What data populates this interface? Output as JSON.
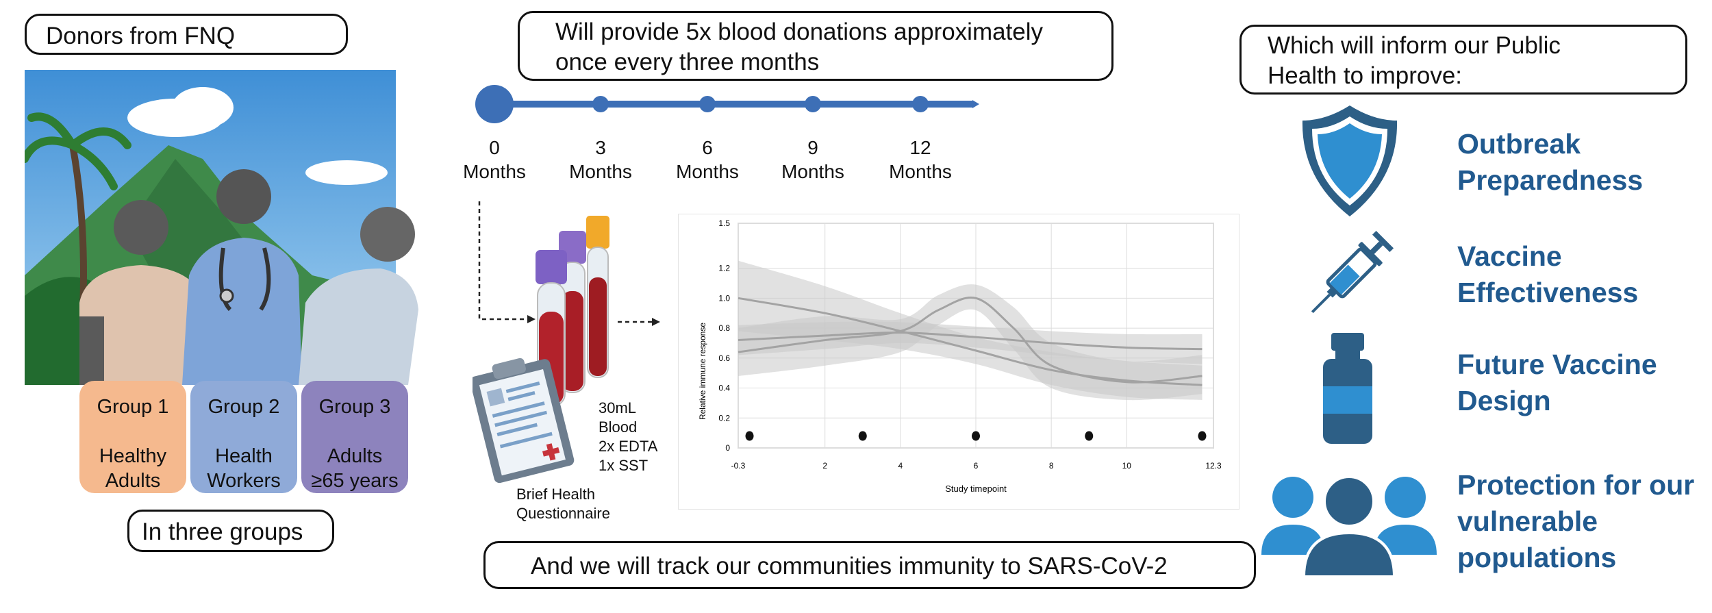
{
  "donors_title": "Donors from FNQ",
  "groups": [
    {
      "name": "Group 1",
      "desc1": "Healthy",
      "desc2": "Adults",
      "color": "#f5b98e"
    },
    {
      "name": "Group 2",
      "desc1": "Health",
      "desc2": "Workers",
      "color": "#8faad8"
    },
    {
      "name": "Group 3",
      "desc1": "Adults",
      "desc2": "≥65 years",
      "color": "#8d83bd"
    }
  ],
  "groups_caption": "In three groups",
  "donation_title_line1": "Will provide 5x blood donations approximately",
  "donation_title_line2": "once every three months",
  "timeline": [
    {
      "num": "0",
      "unit": "Months"
    },
    {
      "num": "3",
      "unit": "Months"
    },
    {
      "num": "6",
      "unit": "Months"
    },
    {
      "num": "9",
      "unit": "Months"
    },
    {
      "num": "12",
      "unit": "Months"
    }
  ],
  "sample": {
    "line1": "30mL",
    "line2": "Blood",
    "line3": "2x EDTA",
    "line4": "1x SST"
  },
  "questionnaire": {
    "line1": "Brief Health",
    "line2": "Questionnaire"
  },
  "tracking_text": "And we will track our communities immunity to SARS-CoV-2",
  "public_health_line1": "Which will inform our Public",
  "public_health_line2": "Health to improve:",
  "goals": [
    {
      "line1": "Outbreak",
      "line2": "Preparedness",
      "icon": "shield-icon"
    },
    {
      "line1": "Vaccine",
      "line2": "Effectiveness",
      "icon": "syringe-icon"
    },
    {
      "line1": "Future Vaccine",
      "line2": "Design",
      "icon": "vial-icon"
    },
    {
      "line1": "Protection for our",
      "line2": "vulnerable",
      "line3": "populations",
      "icon": "people-icon"
    }
  ],
  "colors": {
    "timeline": "#3d6fb6",
    "goal_text": "#215a8f",
    "icon_blue": "#2f8fd0",
    "icon_dark": "#2d5f86"
  },
  "chart_data": {
    "type": "line",
    "xlabel": "Study timepoint",
    "ylabel": "Relative immune response",
    "xlim": [
      -0.3,
      12.3
    ],
    "ylim": [
      0,
      1.5
    ],
    "x_ticks": [
      "-0.3",
      "2",
      "4",
      "6",
      "8",
      "10",
      "12.3"
    ],
    "y_ticks": [
      "0",
      "0.2",
      "0.4",
      "0.6",
      "0.8",
      "1.0",
      "1.2",
      "1.5"
    ],
    "grid": true,
    "series": [
      {
        "x": [
          -0.3,
          2,
          4,
          6,
          8,
          10,
          12
        ],
        "values": [
          1.0,
          0.9,
          0.78,
          0.65,
          0.52,
          0.45,
          0.42
        ],
        "band_low": [
          0.78,
          0.72,
          0.66,
          0.56,
          0.42,
          0.34,
          0.32
        ],
        "band_high": [
          1.25,
          1.08,
          0.9,
          0.74,
          0.64,
          0.58,
          0.55
        ]
      },
      {
        "x": [
          -0.3,
          2,
          4,
          6,
          8,
          10,
          12
        ],
        "values": [
          0.72,
          0.75,
          0.77,
          0.74,
          0.7,
          0.67,
          0.66
        ],
        "band_low": [
          0.62,
          0.66,
          0.7,
          0.67,
          0.62,
          0.58,
          0.56
        ],
        "band_high": [
          0.82,
          0.84,
          0.84,
          0.81,
          0.78,
          0.76,
          0.76
        ]
      },
      {
        "x": [
          -0.3,
          2,
          4,
          5,
          6,
          7,
          8,
          10,
          12
        ],
        "values": [
          0.64,
          0.72,
          0.78,
          0.92,
          1.0,
          0.8,
          0.55,
          0.44,
          0.48
        ],
        "band_low": [
          0.48,
          0.55,
          0.64,
          0.82,
          0.92,
          0.66,
          0.4,
          0.32,
          0.36
        ],
        "band_high": [
          0.8,
          0.88,
          0.86,
          1.02,
          1.09,
          0.94,
          0.7,
          0.58,
          0.62
        ]
      }
    ],
    "points": [
      {
        "x": 0,
        "y": 0.08
      },
      {
        "x": 3,
        "y": 0.08
      },
      {
        "x": 6,
        "y": 0.08
      },
      {
        "x": 9,
        "y": 0.08
      },
      {
        "x": 12,
        "y": 0.08
      }
    ]
  }
}
